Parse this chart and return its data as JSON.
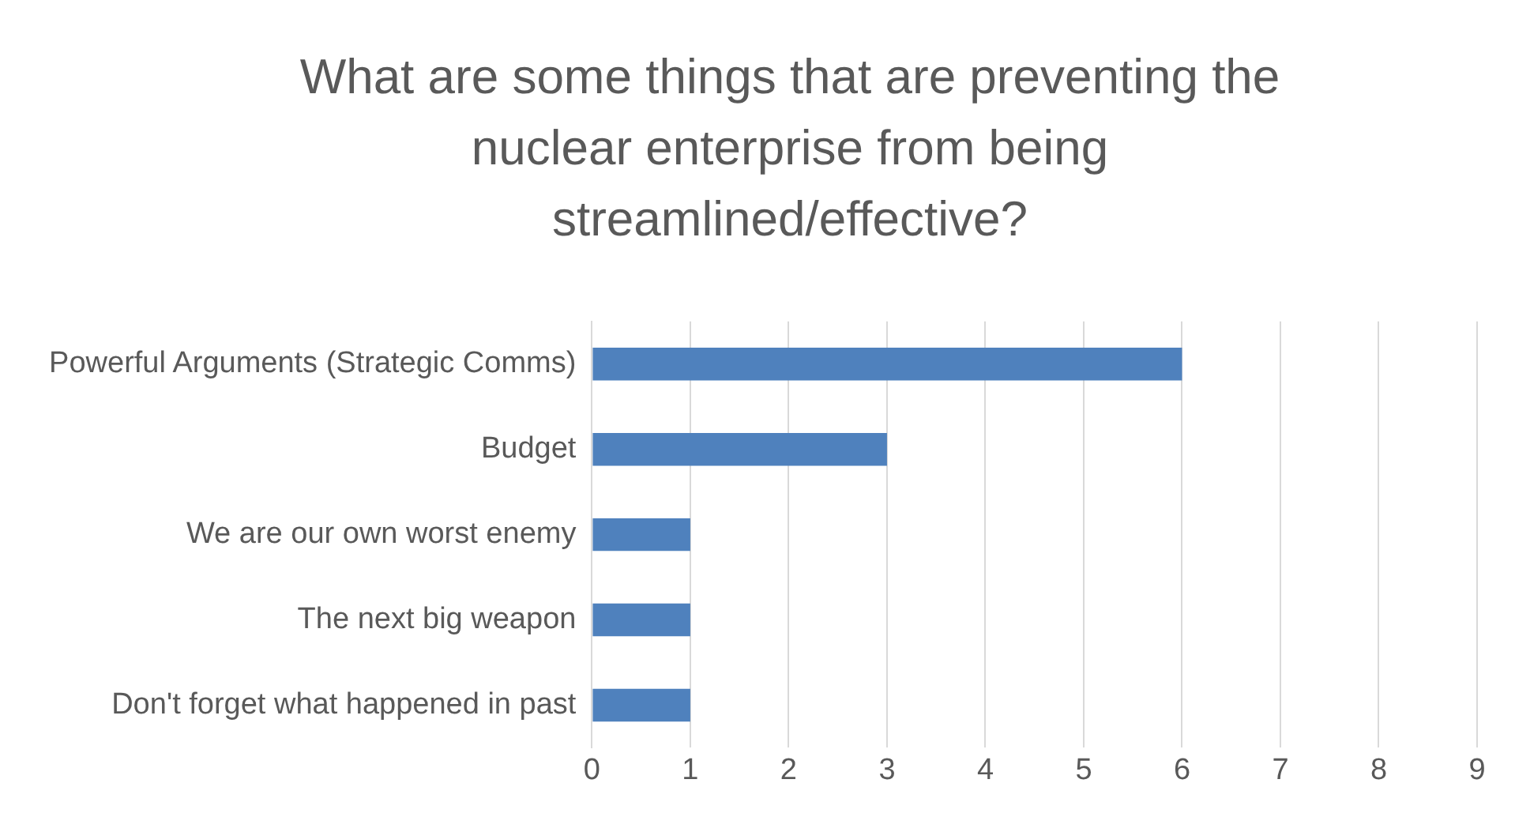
{
  "chart_data": {
    "type": "bar",
    "orientation": "horizontal",
    "title": "What are some things that are preventing the nuclear enterprise from being streamlined/effective?",
    "categories": [
      "Powerful Arguments (Strategic Comms)",
      "Budget",
      "We are our own worst enemy",
      "The next big weapon",
      "Don't forget what happened in past"
    ],
    "values": [
      6,
      3,
      1,
      1,
      1
    ],
    "color": "#4f81bd",
    "xlim": [
      0,
      9
    ],
    "xticks": [
      0,
      1,
      2,
      3,
      4,
      5,
      6,
      7,
      8,
      9
    ],
    "grid": "x",
    "legend": false
  }
}
